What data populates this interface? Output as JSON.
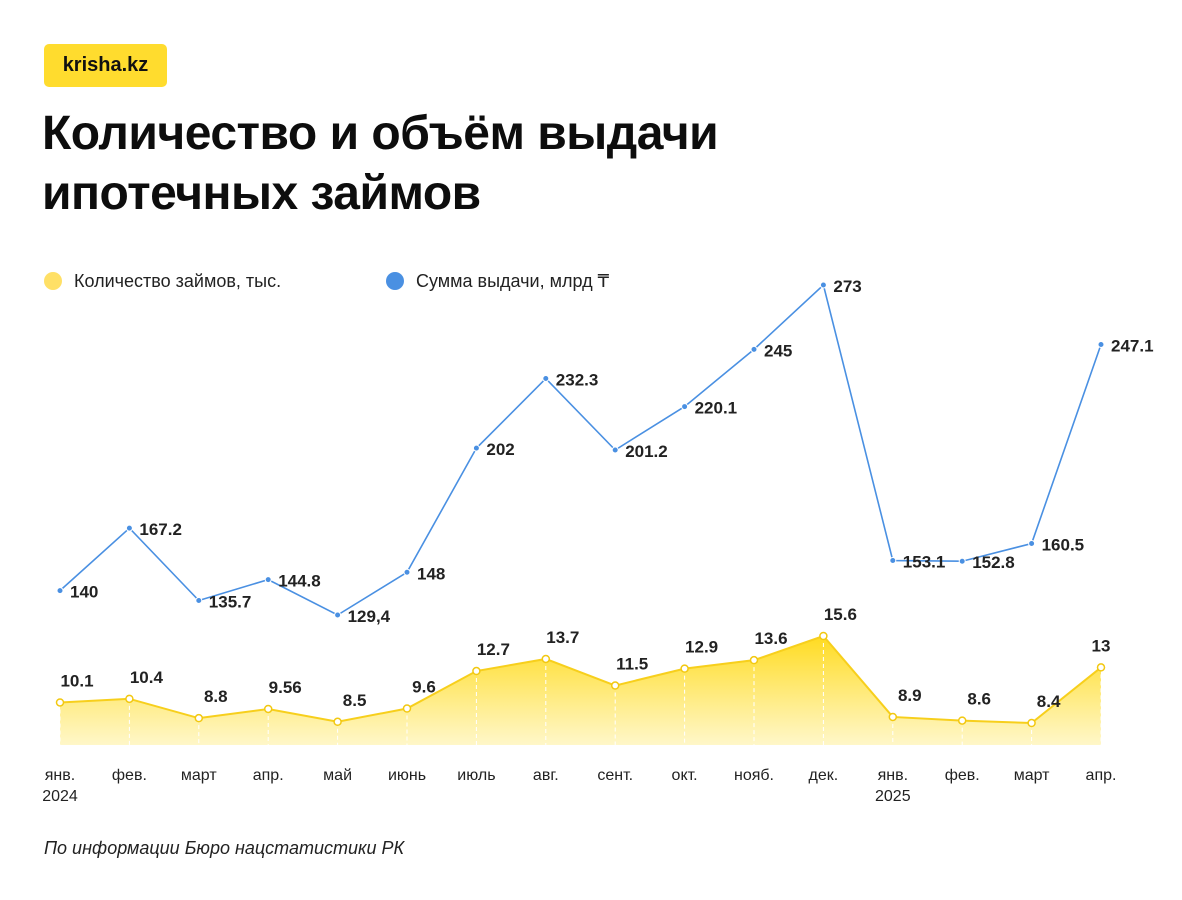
{
  "brand": {
    "logo_text": "krisha.kz",
    "logo_color": "#ffdc2e"
  },
  "title_line1": "Количество и объём выдачи",
  "title_line2": "ипотечных займов",
  "source": "По информации Бюро нацстатистики РК",
  "chart_data": {
    "type": "line",
    "categories": [
      "янв.|2024",
      "фев.",
      "март",
      "апр.",
      "май",
      "июнь",
      "июль",
      "авг.",
      "сент.",
      "окт.",
      "нояб.",
      "дек.",
      "янв.|2025",
      "фев.",
      "март",
      "апр."
    ],
    "series": [
      {
        "name": "Сумма выдачи, млрд ₸",
        "type": "line",
        "color": "#4a90e2",
        "values": [
          140,
          167.2,
          135.7,
          144.8,
          129.4,
          148,
          202,
          232.3,
          201.2,
          220.1,
          245,
          273,
          153.1,
          152.8,
          160.5,
          247.1
        ],
        "labels": [
          "140",
          "167.2",
          "135.7",
          "144.8",
          "129,4",
          "148",
          "202",
          "232.3",
          "201.2",
          "220.1",
          "245",
          "273",
          "153.1",
          "152.8",
          "160.5",
          "247.1"
        ]
      },
      {
        "name": "Количество займов, тыс.",
        "type": "area",
        "color": "#ffe066",
        "values": [
          10.1,
          10.4,
          8.8,
          9.56,
          8.5,
          9.6,
          12.7,
          13.7,
          11.5,
          12.9,
          13.6,
          15.6,
          8.9,
          8.6,
          8.4,
          13
        ],
        "labels": [
          "10.1",
          "10.4",
          "8.8",
          "9.56",
          "8.5",
          "9.6",
          "12.7",
          "13.7",
          "11.5",
          "12.9",
          "13.6",
          "15.6",
          "8.9",
          "8.6",
          "8.4",
          "13"
        ]
      }
    ],
    "legend_position": "top-left",
    "grid": false
  }
}
